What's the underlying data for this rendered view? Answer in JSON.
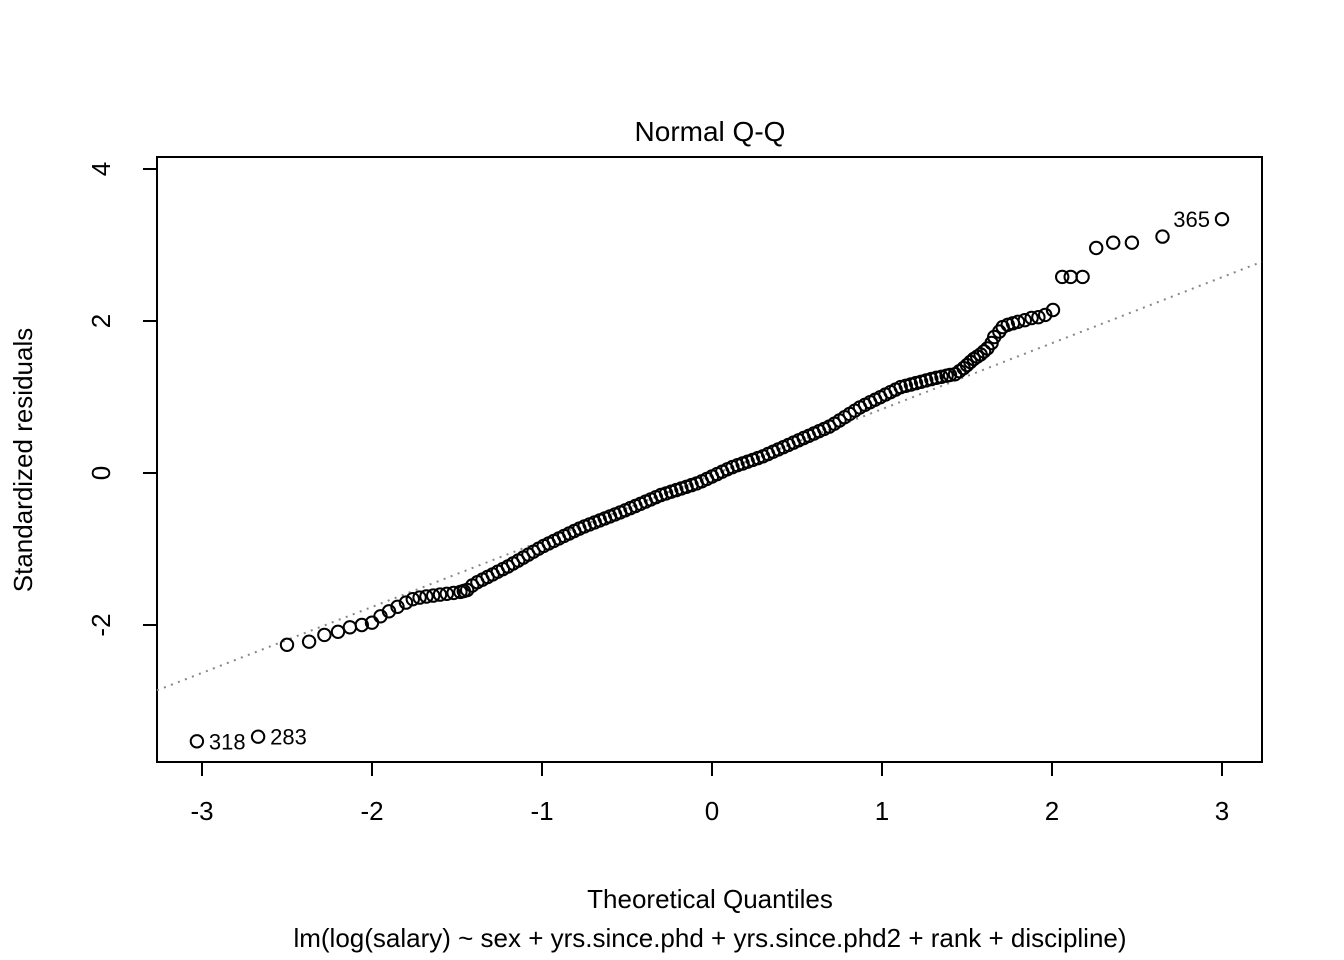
{
  "chart_data": {
    "type": "scatter",
    "variant": "normal-qq-plot",
    "title": "Normal Q-Q",
    "xlabel": "Theoretical Quantiles",
    "ylabel": "Standardized residuals",
    "subtitle": "lm(log(salary) ~ sex + yrs.since.phd + yrs.since.phd2 + rank + discipline)",
    "x_ticks": [
      -3,
      -2,
      -1,
      0,
      1,
      2,
      3
    ],
    "y_ticks": [
      -2,
      0,
      2,
      4
    ],
    "xlim": [
      -3.26,
      3.24
    ],
    "ylim": [
      -3.8,
      4.16
    ],
    "grid": false,
    "point_color": "#000000",
    "reference_line": {
      "style": "dotted",
      "color": "#878787",
      "equation": "y = 0.867x - 0.03",
      "x1": -3.265,
      "y1": -2.86,
      "x2": 3.235,
      "y2": 2.78
    },
    "labeled_points": [
      {
        "label": "365",
        "x": 3.0,
        "y": 3.34,
        "label_side": "left"
      },
      {
        "label": "318",
        "x": -3.03,
        "y": -3.53,
        "label_side": "right"
      },
      {
        "label": "283",
        "x": -2.67,
        "y": -3.47,
        "label_side": "right"
      }
    ],
    "points": [
      [
        -2.5,
        -2.26
      ],
      [
        -2.37,
        -2.22
      ],
      [
        -2.28,
        -2.13
      ],
      [
        -2.2,
        -2.09
      ],
      [
        -2.13,
        -2.03
      ],
      [
        -2.06,
        -2.0
      ],
      [
        -2.0,
        -1.97
      ],
      [
        -1.95,
        -1.885
      ],
      [
        -1.9,
        -1.82
      ],
      [
        -1.85,
        -1.76
      ],
      [
        -1.8,
        -1.705
      ],
      [
        -1.76,
        -1.66
      ],
      [
        -1.72,
        -1.64
      ],
      [
        -1.68,
        -1.625
      ],
      [
        -1.64,
        -1.613
      ],
      [
        -1.6,
        -1.6
      ],
      [
        -1.56,
        -1.59
      ],
      [
        -1.52,
        -1.578
      ],
      [
        -1.48,
        -1.565
      ],
      [
        -1.46,
        -1.552
      ],
      [
        -1.44,
        -1.54
      ],
      [
        -1.41,
        -1.48
      ],
      [
        -1.38,
        -1.437
      ],
      [
        -1.35,
        -1.403
      ],
      [
        -1.32,
        -1.368
      ],
      [
        -1.29,
        -1.334
      ],
      [
        -1.26,
        -1.299
      ],
      [
        -1.23,
        -1.265
      ],
      [
        -1.2,
        -1.23
      ],
      [
        -1.17,
        -1.191
      ],
      [
        -1.14,
        -1.152
      ],
      [
        -1.11,
        -1.113
      ],
      [
        -1.08,
        -1.074
      ],
      [
        -1.05,
        -1.035
      ],
      [
        -1.02,
        -0.996
      ],
      [
        -0.99,
        -0.959
      ],
      [
        -0.96,
        -0.926
      ],
      [
        -0.93,
        -0.894
      ],
      [
        -0.9,
        -0.861
      ],
      [
        -0.87,
        -0.828
      ],
      [
        -0.84,
        -0.796
      ],
      [
        -0.81,
        -0.763
      ],
      [
        -0.78,
        -0.731
      ],
      [
        -0.75,
        -0.703
      ],
      [
        -0.72,
        -0.676
      ],
      [
        -0.69,
        -0.65
      ],
      [
        -0.66,
        -0.624
      ],
      [
        -0.63,
        -0.598
      ],
      [
        -0.6,
        -0.571
      ],
      [
        -0.57,
        -0.545
      ],
      [
        -0.54,
        -0.519
      ],
      [
        -0.51,
        -0.491
      ],
      [
        -0.48,
        -0.462
      ],
      [
        -0.45,
        -0.434
      ],
      [
        -0.42,
        -0.405
      ],
      [
        -0.39,
        -0.376
      ],
      [
        -0.36,
        -0.347
      ],
      [
        -0.33,
        -0.319
      ],
      [
        -0.3,
        -0.29
      ],
      [
        -0.27,
        -0.268
      ],
      [
        -0.24,
        -0.246
      ],
      [
        -0.21,
        -0.225
      ],
      [
        -0.18,
        -0.203
      ],
      [
        -0.15,
        -0.181
      ],
      [
        -0.12,
        -0.159
      ],
      [
        -0.09,
        -0.137
      ],
      [
        -0.06,
        -0.109
      ],
      [
        -0.03,
        -0.077
      ],
      [
        0.0,
        -0.046
      ],
      [
        0.03,
        -0.014
      ],
      [
        0.06,
        0.017
      ],
      [
        0.09,
        0.049
      ],
      [
        0.12,
        0.078
      ],
      [
        0.15,
        0.102
      ],
      [
        0.18,
        0.125
      ],
      [
        0.21,
        0.149
      ],
      [
        0.24,
        0.173
      ],
      [
        0.27,
        0.196
      ],
      [
        0.3,
        0.22
      ],
      [
        0.33,
        0.25
      ],
      [
        0.36,
        0.28
      ],
      [
        0.39,
        0.31
      ],
      [
        0.42,
        0.34
      ],
      [
        0.45,
        0.37
      ],
      [
        0.48,
        0.4
      ],
      [
        0.51,
        0.43
      ],
      [
        0.54,
        0.46
      ],
      [
        0.57,
        0.49
      ],
      [
        0.6,
        0.52
      ],
      [
        0.63,
        0.55
      ],
      [
        0.66,
        0.58
      ],
      [
        0.69,
        0.61
      ],
      [
        0.72,
        0.649
      ],
      [
        0.75,
        0.691
      ],
      [
        0.78,
        0.734
      ],
      [
        0.81,
        0.777
      ],
      [
        0.84,
        0.82
      ],
      [
        0.87,
        0.863
      ],
      [
        0.9,
        0.898
      ],
      [
        0.93,
        0.931
      ],
      [
        0.96,
        0.964
      ],
      [
        0.99,
        0.998
      ],
      [
        1.02,
        1.031
      ],
      [
        1.05,
        1.064
      ],
      [
        1.08,
        1.097
      ],
      [
        1.11,
        1.13
      ],
      [
        1.14,
        1.148
      ],
      [
        1.17,
        1.165
      ],
      [
        1.2,
        1.183
      ],
      [
        1.23,
        1.2
      ],
      [
        1.26,
        1.218
      ],
      [
        1.29,
        1.235
      ],
      [
        1.32,
        1.252
      ],
      [
        1.35,
        1.266
      ],
      [
        1.38,
        1.28
      ],
      [
        1.4,
        1.29
      ],
      [
        1.43,
        1.3
      ],
      [
        1.455,
        1.34
      ],
      [
        1.48,
        1.38
      ],
      [
        1.5,
        1.42
      ],
      [
        1.52,
        1.46
      ],
      [
        1.54,
        1.5
      ],
      [
        1.56,
        1.53
      ],
      [
        1.58,
        1.56
      ],
      [
        1.6,
        1.6
      ],
      [
        1.62,
        1.64
      ],
      [
        1.645,
        1.71
      ],
      [
        1.66,
        1.79
      ],
      [
        1.69,
        1.86
      ],
      [
        1.71,
        1.92
      ],
      [
        1.74,
        1.95
      ],
      [
        1.77,
        1.97
      ],
      [
        1.8,
        1.99
      ],
      [
        1.84,
        2.01
      ],
      [
        1.88,
        2.04
      ],
      [
        1.92,
        2.05
      ],
      [
        1.96,
        2.08
      ],
      [
        2.006,
        2.145
      ],
      [
        2.06,
        2.58
      ],
      [
        2.11,
        2.58
      ],
      [
        2.18,
        2.58
      ],
      [
        2.26,
        2.96
      ],
      [
        2.36,
        3.03
      ],
      [
        2.47,
        3.03
      ],
      [
        2.65,
        3.11
      ]
    ]
  }
}
